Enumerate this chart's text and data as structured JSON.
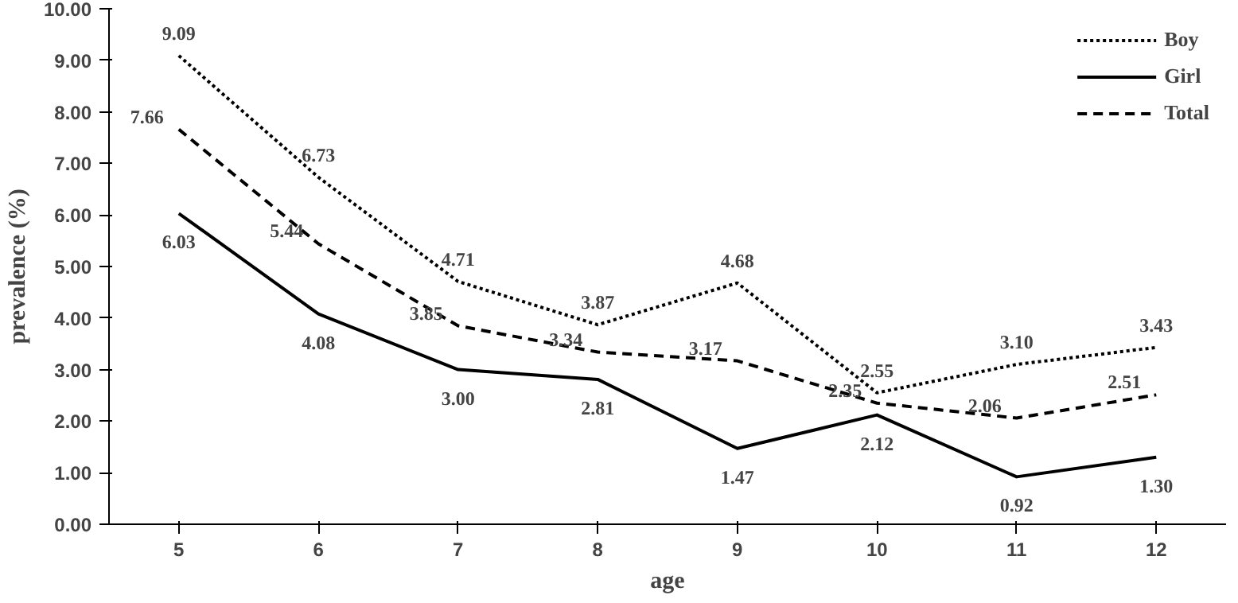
{
  "chart_data": {
    "type": "line",
    "xlabel": "age",
    "ylabel": "prevalence (%)",
    "categories": [
      "5",
      "6",
      "7",
      "8",
      "9",
      "10",
      "11",
      "12"
    ],
    "series": [
      {
        "name": "Boy",
        "color": "#000000",
        "line_style": "dotted",
        "values": [
          9.09,
          6.73,
          4.71,
          3.87,
          4.68,
          2.55,
          3.1,
          3.43
        ],
        "value_labels": [
          "9.09",
          "6.73",
          "4.71",
          "3.87",
          "4.68",
          "2.55",
          "3.10",
          "3.43"
        ]
      },
      {
        "name": "Girl",
        "color": "#000000",
        "line_style": "solid",
        "values": [
          6.03,
          4.08,
          3.0,
          2.81,
          1.47,
          2.12,
          0.92,
          1.3
        ],
        "value_labels": [
          "6.03",
          "4.08",
          "3.00",
          "2.81",
          "1.47",
          "2.12",
          "0.92",
          "1.30"
        ]
      },
      {
        "name": "Total",
        "color": "#000000",
        "line_style": "dashed",
        "values": [
          7.66,
          5.44,
          3.85,
          3.34,
          3.17,
          2.35,
          2.06,
          2.51
        ],
        "value_labels": [
          "7.66",
          "5.44",
          "3.85",
          "3.34",
          "3.17",
          "2.35",
          "2.06",
          "2.51"
        ]
      }
    ],
    "ylim": [
      0,
      10
    ],
    "yticks": [
      {
        "value": 0,
        "label": "0.00"
      },
      {
        "value": 1,
        "label": "1.00"
      },
      {
        "value": 2,
        "label": "2.00"
      },
      {
        "value": 3,
        "label": "3.00"
      },
      {
        "value": 4,
        "label": "4.00"
      },
      {
        "value": 5,
        "label": "5.00"
      },
      {
        "value": 6,
        "label": "6.00"
      },
      {
        "value": 7,
        "label": "7.00"
      },
      {
        "value": 8,
        "label": "8.00"
      },
      {
        "value": 9,
        "label": "9.00"
      },
      {
        "value": 10,
        "label": "10.00"
      }
    ],
    "legend": "top right",
    "grid": false,
    "marker": "none"
  }
}
